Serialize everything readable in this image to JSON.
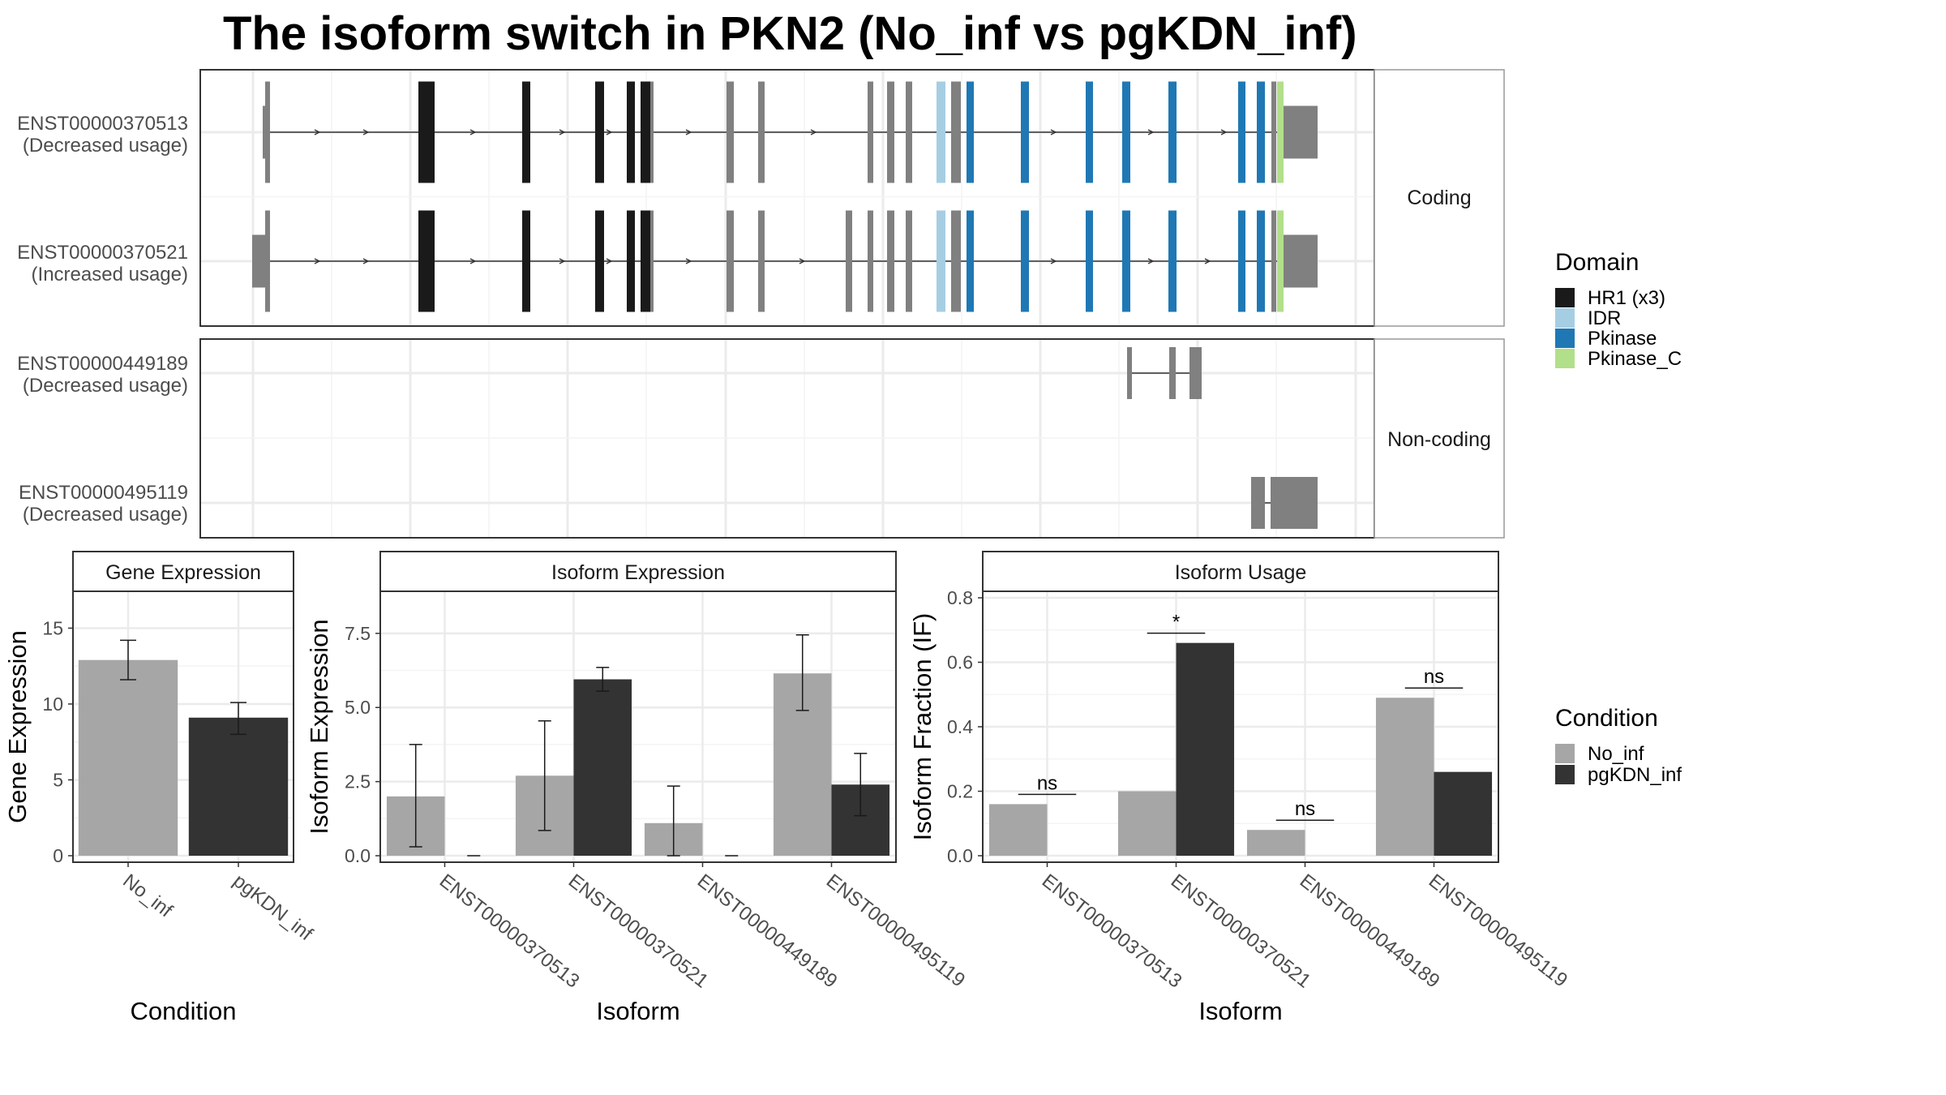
{
  "title": "The isoform switch in PKN2 (No_inf vs pgKDN_inf)",
  "colors": {
    "HR1": "#1a1a1a",
    "IDR": "#a6cee3",
    "Pkinase": "#1f78b4",
    "Pkinase_C": "#b2df8a",
    "noncoding": "#808080",
    "No_inf": "#a6a6a6",
    "pgKDN_inf": "#333333"
  },
  "structure": {
    "coding_strip": "Coding",
    "noncoding_strip": "Non-coding",
    "isoforms": [
      {
        "id": "ENST00000370513",
        "usage": "(Decreased usage)",
        "group": "coding"
      },
      {
        "id": "ENST00000370521",
        "usage": "(Increased usage)",
        "group": "coding"
      },
      {
        "id": "ENST00000449189",
        "usage": "(Decreased usage)",
        "group": "noncoding"
      },
      {
        "id": "ENST00000495119",
        "usage": "(Decreased usage)",
        "group": "noncoding"
      }
    ],
    "domain_legend": {
      "title": "Domain",
      "entries": [
        "HR1 (x3)",
        "IDR",
        "Pkinase",
        "Pkinase_C"
      ]
    }
  },
  "condition_legend": {
    "title": "Condition",
    "entries": [
      "No_inf",
      "pgKDN_inf"
    ]
  },
  "chart_data": [
    {
      "type": "bar",
      "title": "Gene Expression",
      "xlabel": "Condition",
      "ylabel": "Gene Expression",
      "categories": [
        "No_inf",
        "pgKDN_inf"
      ],
      "values": [
        12.9,
        9.1
      ],
      "err_low": [
        11.6,
        8.0
      ],
      "err_high": [
        14.2,
        10.1
      ],
      "ylim": [
        0,
        17
      ],
      "yticks": [
        "0",
        "5",
        "10",
        "15"
      ],
      "ytick_values": [
        0,
        5,
        10,
        15
      ]
    },
    {
      "type": "bar",
      "title": "Isoform Expression",
      "xlabel": "Isoform",
      "ylabel": "Isoform Expression",
      "categories": [
        "ENST00000370513",
        "ENST00000370521",
        "ENST00000449189",
        "ENST00000495119"
      ],
      "series": [
        {
          "name": "No_inf",
          "values": [
            2.0,
            2.7,
            1.1,
            6.15
          ],
          "err_low": [
            0.3,
            0.85,
            0.0,
            4.9
          ],
          "err_high": [
            3.75,
            4.55,
            2.35,
            7.45
          ]
        },
        {
          "name": "pgKDN_inf",
          "values": [
            0.0,
            5.95,
            0.0,
            2.4
          ],
          "err_low": [
            0.0,
            5.55,
            0.0,
            1.35
          ],
          "err_high": [
            0.0,
            6.35,
            0.0,
            3.45
          ]
        }
      ],
      "ylim": [
        0,
        8.7
      ],
      "yticks": [
        "0.0",
        "2.5",
        "5.0",
        "7.5"
      ],
      "ytick_values": [
        0,
        2.5,
        5.0,
        7.5
      ]
    },
    {
      "type": "bar",
      "title": "Isoform Usage",
      "xlabel": "Isoform",
      "ylabel": "Isoform Fraction (IF)",
      "categories": [
        "ENST00000370513",
        "ENST00000370521",
        "ENST00000449189",
        "ENST00000495119"
      ],
      "series": [
        {
          "name": "No_inf",
          "values": [
            0.16,
            0.2,
            0.08,
            0.49
          ]
        },
        {
          "name": "pgKDN_inf",
          "values": [
            0.0,
            0.66,
            0.0,
            0.26
          ]
        }
      ],
      "significance": [
        "ns",
        "*",
        "ns",
        "ns"
      ],
      "ylim": [
        0,
        0.8
      ],
      "yticks": [
        "0.0",
        "0.2",
        "0.4",
        "0.6",
        "0.8"
      ],
      "ytick_values": [
        0,
        0.2,
        0.4,
        0.6,
        0.8
      ]
    }
  ]
}
